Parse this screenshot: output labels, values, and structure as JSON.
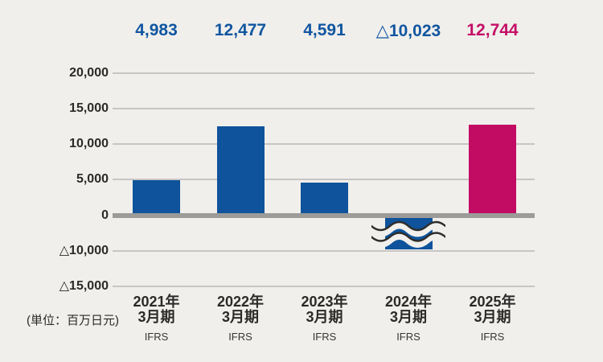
{
  "unit_label": "(単位：百万日元)",
  "chart_data": {
    "type": "bar",
    "title": "",
    "xlabel": "",
    "ylabel": "",
    "unit_label": "(単位：百万日元)",
    "categories": [
      "2021年3月期",
      "2022年3月期",
      "2023年3月期",
      "2024年3月期",
      "2025年3月期"
    ],
    "category_lines": [
      [
        "2021年",
        "3月期",
        "IFRS"
      ],
      [
        "2022年",
        "3月期",
        "IFRS"
      ],
      [
        "2023年",
        "3月期",
        "IFRS"
      ],
      [
        "2024年",
        "3月期",
        "IFRS"
      ],
      [
        "2025年",
        "3月期",
        "IFRS"
      ]
    ],
    "values": [
      4983,
      12477,
      4591,
      -10023,
      12744
    ],
    "value_labels": [
      "4,983",
      "12,477",
      "4,591",
      "△10,023",
      "12,744"
    ],
    "bar_colors": [
      "#0e539b",
      "#0e539b",
      "#0e539b",
      "#0e539b",
      "#c20b62"
    ],
    "value_label_colors": [
      "#1156a0",
      "#1156a0",
      "#1156a0",
      "#1156a0",
      "#c50e66"
    ],
    "y_ticks": {
      "labels": [
        "20,000",
        "15,000",
        "10,000",
        "5,000",
        "0",
        "△10,000",
        "△15,000"
      ],
      "values": [
        20000,
        15000,
        10000,
        5000,
        0,
        -10000,
        -15000
      ]
    },
    "axis_break": {
      "present": true,
      "broken_bar_index": 3,
      "note": "negative axis compressed between 0 and △10,000 (double wavy line through the negative bar)"
    },
    "grid": "horizontal",
    "legend": null
  },
  "colors": {
    "background": "#f0efec",
    "bar_blue": "#0e539b",
    "bar_pink": "#c20b62",
    "gridline": "#c7c6c4",
    "zero_line": "#9c9b99",
    "axis_text": "#2b2a28",
    "break_stroke": "#2d2c2a"
  }
}
